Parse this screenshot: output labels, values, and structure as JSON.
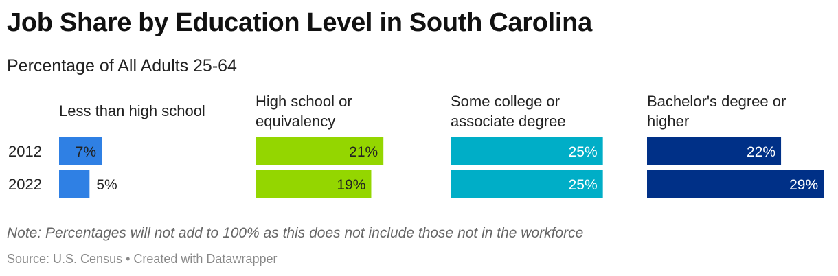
{
  "title": "Job Share by Education Level in South Carolina",
  "subtitle": "Percentage of All Adults 25-64",
  "note": "Note: Percentages will not add to 100% as this does not include those not in the workforce",
  "source": "Source: U.S. Census • Created with Datawrapper",
  "chart_data": {
    "type": "bar",
    "orientation": "horizontal",
    "layout": "small-multiples",
    "rows": [
      "2012",
      "2022"
    ],
    "value_format": "percent",
    "xlim": [
      0,
      30
    ],
    "series": [
      {
        "name": "Less than high school",
        "color": "#2f80e4",
        "values": [
          7,
          5
        ],
        "labels": [
          "7%",
          "5%"
        ]
      },
      {
        "name": "High school or equivalency",
        "color": "#94d600",
        "values": [
          21,
          19
        ],
        "labels": [
          "21%",
          "19%"
        ]
      },
      {
        "name": "Some college or associate degree",
        "color": "#00aec7",
        "values": [
          25,
          25
        ],
        "labels": [
          "25%",
          "25%"
        ]
      },
      {
        "name": "Bachelor's degree or higher",
        "color": "#003087",
        "values": [
          22,
          29
        ],
        "labels": [
          "22%",
          "29%"
        ]
      }
    ]
  }
}
